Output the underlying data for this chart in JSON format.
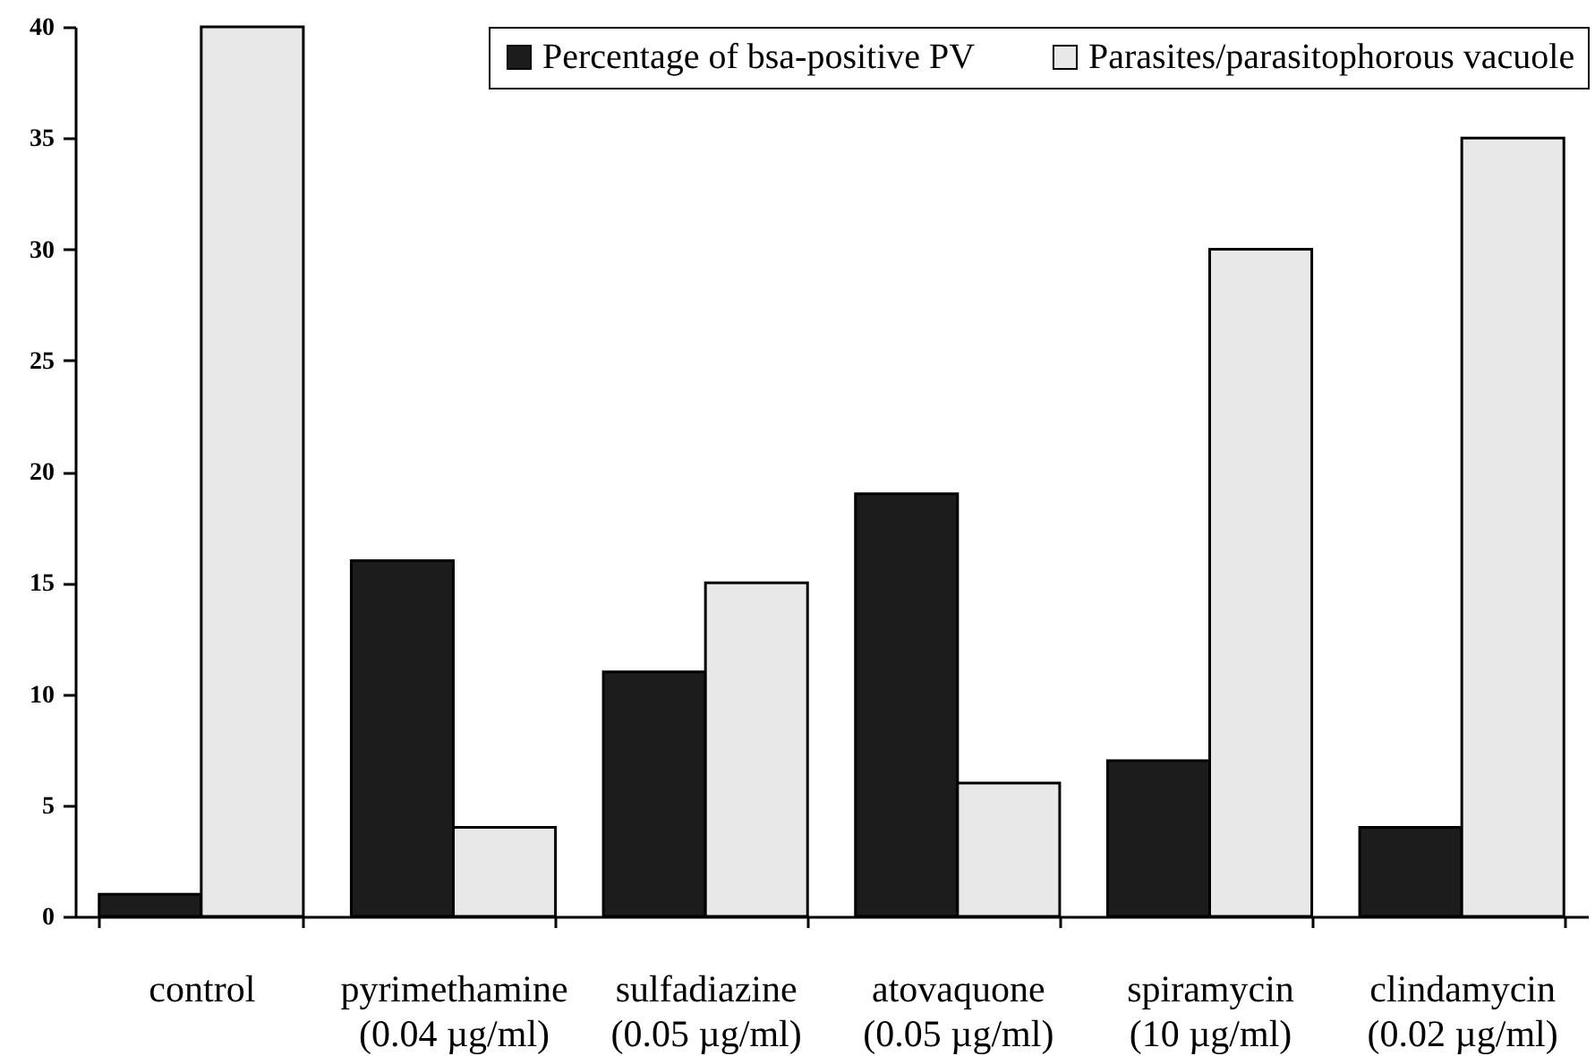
{
  "chart_data": {
    "type": "bar",
    "categories": [
      "control",
      "pyrimethamine\n(0.04 µg/ml)",
      "sulfadiazine\n(0.05 µg/ml)",
      "atovaquone\n(0.05 µg/ml)",
      "spiramycin\n(10 µg/ml)",
      "clindamycin\n(0.02 µg/ml)"
    ],
    "series": [
      {
        "name": "Percentage of bsa-positive PV",
        "color": "#1c1c1c",
        "values": [
          1,
          16,
          11,
          19,
          7,
          4
        ]
      },
      {
        "name": "Parasites/parasitophorous vacuole",
        "color": "#e8e8e8",
        "values": [
          40,
          4,
          15,
          6,
          30,
          35
        ]
      }
    ],
    "ylim": [
      0,
      40
    ],
    "yticks": [
      0,
      5,
      10,
      15,
      20,
      25,
      30,
      35,
      40
    ],
    "grid": false,
    "legend": "top right"
  }
}
